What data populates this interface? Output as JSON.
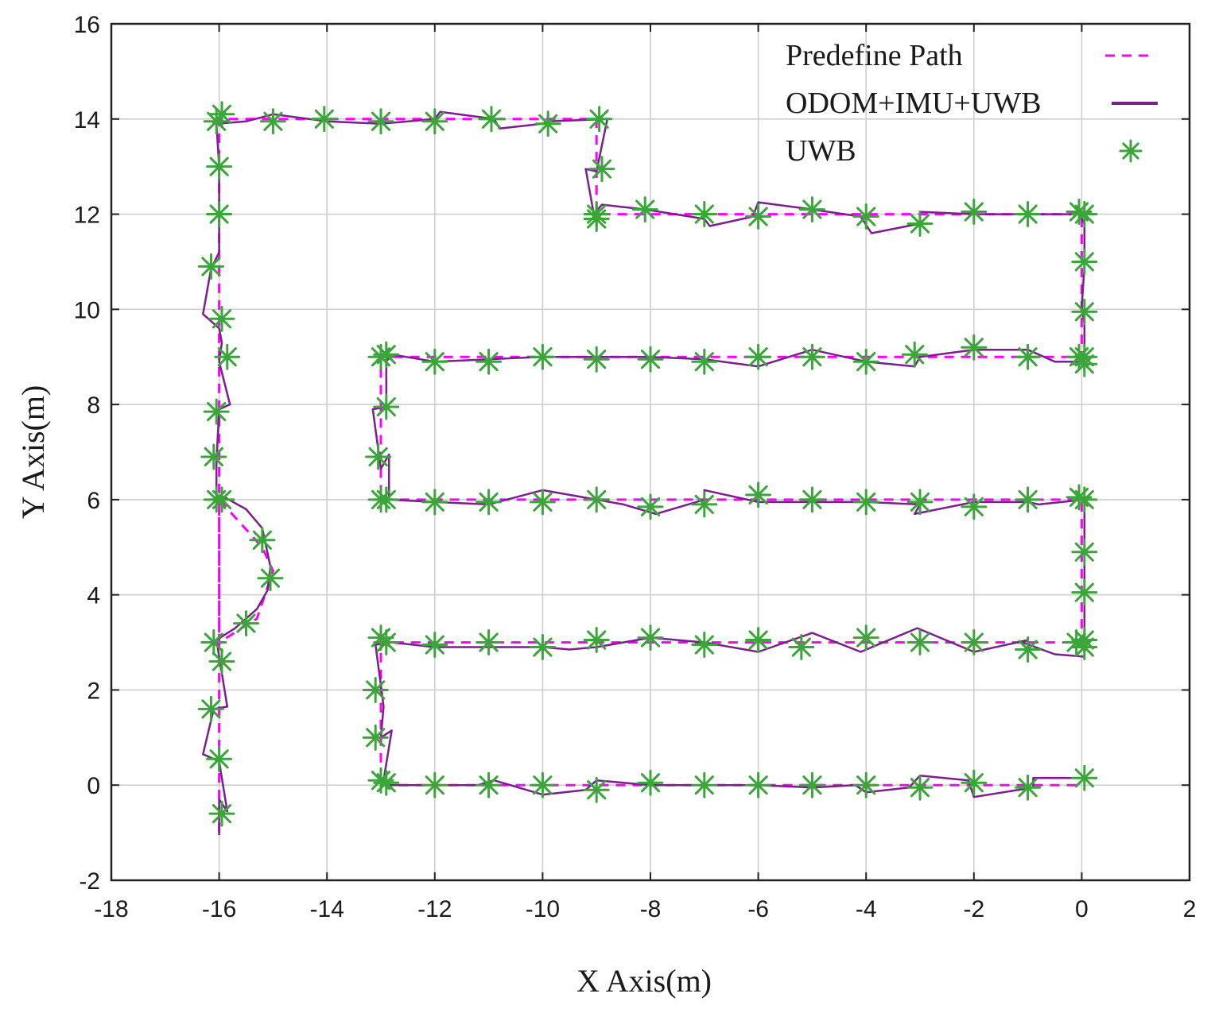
{
  "chart_data": {
    "type": "line",
    "xlabel": "X Axis(m)",
    "ylabel": "Y Axis(m)",
    "xlim": [
      -18,
      2
    ],
    "ylim": [
      -2,
      16
    ],
    "xticks": [
      -18,
      -16,
      -14,
      -12,
      -10,
      -8,
      -6,
      -4,
      -2,
      0,
      2
    ],
    "yticks": [
      -2,
      0,
      2,
      4,
      6,
      8,
      10,
      12,
      14,
      16
    ],
    "grid": true,
    "legend_position": "top-right",
    "series": [
      {
        "name": "Predefine Path",
        "style": "dashed",
        "color": "#ff00ff",
        "points": [
          [
            -16,
            -1
          ],
          [
            -16,
            6
          ],
          [
            -15.2,
            5
          ],
          [
            -15,
            4.5
          ],
          [
            -15.3,
            3.5
          ],
          [
            -16,
            3
          ],
          [
            -16,
            14
          ],
          [
            -9,
            14
          ],
          [
            -9,
            12
          ],
          [
            0,
            12
          ],
          [
            0,
            9
          ],
          [
            -13,
            9
          ],
          [
            -13,
            6
          ],
          [
            0,
            6
          ],
          [
            0,
            3
          ],
          [
            -13,
            3
          ],
          [
            -13,
            0
          ],
          [
            0,
            0
          ]
        ]
      },
      {
        "name": "ODOM+IMU+UWB",
        "style": "solid",
        "color": "#7b1f8c",
        "points": [
          [
            -16,
            -1.05
          ],
          [
            -16,
            -0.3
          ],
          [
            -15.85,
            -0.55
          ],
          [
            -16,
            0.5
          ],
          [
            -16.3,
            0.65
          ],
          [
            -16.1,
            1.6
          ],
          [
            -15.85,
            1.65
          ],
          [
            -16,
            2.7
          ],
          [
            -16.05,
            3.05
          ],
          [
            -15.7,
            3.3
          ],
          [
            -15.3,
            3.7
          ],
          [
            -15.1,
            4.1
          ],
          [
            -15.05,
            4.6
          ],
          [
            -15.2,
            5.4
          ],
          [
            -15.5,
            5.8
          ],
          [
            -15.9,
            6.05
          ],
          [
            -16.05,
            6.1
          ],
          [
            -16.05,
            6.8
          ],
          [
            -16,
            7.9
          ],
          [
            -15.8,
            8.0
          ],
          [
            -16.0,
            8.9
          ],
          [
            -15.95,
            9.3
          ],
          [
            -16.0,
            9.6
          ],
          [
            -16.3,
            9.9
          ],
          [
            -16.15,
            10.85
          ],
          [
            -16.0,
            11.2
          ],
          [
            -16.0,
            13.0
          ],
          [
            -16.05,
            13.9
          ],
          [
            -15.5,
            13.95
          ],
          [
            -15,
            14.1
          ],
          [
            -14,
            13.95
          ],
          [
            -13,
            13.9
          ],
          [
            -12,
            14.0
          ],
          [
            -11.9,
            14.15
          ],
          [
            -10.9,
            14.0
          ],
          [
            -10.8,
            13.8
          ],
          [
            -10,
            13.9
          ],
          [
            -9.9,
            13.95
          ],
          [
            -8.8,
            14.0
          ],
          [
            -9.0,
            12.9
          ],
          [
            -9.2,
            12.95
          ],
          [
            -9.05,
            12.0
          ],
          [
            -8.9,
            12.2
          ],
          [
            -8.1,
            12.1
          ],
          [
            -7,
            11.9
          ],
          [
            -6.9,
            11.75
          ],
          [
            -6.1,
            11.95
          ],
          [
            -6.0,
            12.25
          ],
          [
            -5,
            12.1
          ],
          [
            -4.1,
            11.95
          ],
          [
            -3.9,
            11.6
          ],
          [
            -3,
            11.8
          ],
          [
            -3,
            12.05
          ],
          [
            -2,
            12.0
          ],
          [
            -1.2,
            12.0
          ],
          [
            -0.05,
            12.0
          ],
          [
            0.05,
            11.8
          ],
          [
            0.05,
            10.9
          ],
          [
            0.0,
            10.05
          ],
          [
            0.05,
            9.7
          ],
          [
            0.05,
            8.9
          ],
          [
            -0.5,
            8.9
          ],
          [
            -1,
            9.15
          ],
          [
            -2,
            9.15
          ],
          [
            -3,
            9.0
          ],
          [
            -3.1,
            8.8
          ],
          [
            -4,
            8.9
          ],
          [
            -5,
            9.15
          ],
          [
            -6,
            8.8
          ],
          [
            -7,
            8.95
          ],
          [
            -8,
            9.0
          ],
          [
            -9,
            9.0
          ],
          [
            -10,
            9.0
          ],
          [
            -11,
            8.95
          ],
          [
            -12,
            8.9
          ],
          [
            -12.8,
            9.05
          ],
          [
            -12.9,
            8.9
          ],
          [
            -12.9,
            7.95
          ],
          [
            -13.15,
            7.9
          ],
          [
            -13.0,
            6.65
          ],
          [
            -12.85,
            6.95
          ],
          [
            -12.85,
            6.0
          ],
          [
            -12,
            5.95
          ],
          [
            -11,
            5.9
          ],
          [
            -10,
            6.2
          ],
          [
            -9,
            6.0
          ],
          [
            -8.5,
            5.9
          ],
          [
            -7.9,
            5.7
          ],
          [
            -7.0,
            6.0
          ],
          [
            -7.0,
            6.2
          ],
          [
            -6,
            5.95
          ],
          [
            -5,
            5.95
          ],
          [
            -4,
            5.95
          ],
          [
            -3,
            5.9
          ],
          [
            -3.1,
            5.7
          ],
          [
            -2,
            5.95
          ],
          [
            -1,
            5.95
          ],
          [
            -0.8,
            5.9
          ],
          [
            0.05,
            6.0
          ],
          [
            0.05,
            4.9
          ],
          [
            0.05,
            4.0
          ],
          [
            0.05,
            2.7
          ],
          [
            -0.5,
            2.75
          ],
          [
            -1.1,
            3.0
          ],
          [
            -1,
            3.05
          ],
          [
            -2,
            2.8
          ],
          [
            -3.05,
            3.3
          ],
          [
            -4.1,
            2.8
          ],
          [
            -5,
            3.2
          ],
          [
            -6,
            2.8
          ],
          [
            -7,
            3.0
          ],
          [
            -8,
            3.1
          ],
          [
            -9,
            2.9
          ],
          [
            -9.5,
            2.85
          ],
          [
            -10,
            2.9
          ],
          [
            -11,
            2.9
          ],
          [
            -12,
            2.9
          ],
          [
            -12.8,
            3.0
          ],
          [
            -13.1,
            2.95
          ],
          [
            -13.0,
            2.1
          ],
          [
            -12.95,
            1.65
          ],
          [
            -13,
            1.0
          ],
          [
            -12.8,
            1.15
          ],
          [
            -12.95,
            0.1
          ],
          [
            -12.9,
            0.0
          ],
          [
            -12,
            0.0
          ],
          [
            -11.2,
            0.0
          ],
          [
            -10.9,
            0.1
          ],
          [
            -10,
            -0.2
          ],
          [
            -9.2,
            -0.1
          ],
          [
            -9,
            0.1
          ],
          [
            -8,
            0.0
          ],
          [
            -7,
            0.0
          ],
          [
            -6,
            0.0
          ],
          [
            -5,
            -0.05
          ],
          [
            -4.2,
            0.0
          ],
          [
            -4,
            -0.15
          ],
          [
            -3.2,
            -0.05
          ],
          [
            -3,
            0.2
          ],
          [
            -2.1,
            0.1
          ],
          [
            -2.0,
            -0.25
          ],
          [
            -0.9,
            -0.05
          ],
          [
            -0.9,
            0.15
          ],
          [
            0.05,
            0.15
          ]
        ]
      },
      {
        "name": "UWB",
        "style": "markers",
        "marker": "asterisk",
        "color": "#3aa63a",
        "points": [
          [
            -15.95,
            -0.6
          ],
          [
            -16.0,
            0.55
          ],
          [
            -16.15,
            1.6
          ],
          [
            -15.95,
            2.6
          ],
          [
            -16.1,
            3.0
          ],
          [
            -15.5,
            3.4
          ],
          [
            -15.05,
            4.35
          ],
          [
            -15.2,
            5.15
          ],
          [
            -15.95,
            6.0
          ],
          [
            -16.05,
            6.0
          ],
          [
            -16.1,
            6.9
          ],
          [
            -16.05,
            7.85
          ],
          [
            -15.85,
            9.0
          ],
          [
            -15.95,
            9.8
          ],
          [
            -16.15,
            10.9
          ],
          [
            -16.0,
            12.0
          ],
          [
            -16.0,
            13.0
          ],
          [
            -16.05,
            13.95
          ],
          [
            -15.95,
            14.1
          ],
          [
            -15.0,
            13.95
          ],
          [
            -14.05,
            14.0
          ],
          [
            -13.0,
            13.95
          ],
          [
            -12.0,
            13.95
          ],
          [
            -10.95,
            14.0
          ],
          [
            -9.9,
            13.9
          ],
          [
            -8.95,
            14.0
          ],
          [
            -8.9,
            12.95
          ],
          [
            -9.0,
            11.9
          ],
          [
            -9.0,
            12.0
          ],
          [
            -8.1,
            12.1
          ],
          [
            -7.0,
            12.0
          ],
          [
            -6.0,
            11.95
          ],
          [
            -5.0,
            12.1
          ],
          [
            -4.0,
            11.95
          ],
          [
            -3.0,
            11.8
          ],
          [
            -2.0,
            12.05
          ],
          [
            -1.0,
            12.0
          ],
          [
            -0.05,
            12.05
          ],
          [
            0.05,
            12.0
          ],
          [
            0.05,
            11.0
          ],
          [
            0.05,
            9.95
          ],
          [
            0.05,
            9.0
          ],
          [
            0.05,
            8.85
          ],
          [
            -0.05,
            9.0
          ],
          [
            -1.0,
            9.0
          ],
          [
            -2.0,
            9.2
          ],
          [
            -3.1,
            9.05
          ],
          [
            -4.0,
            8.9
          ],
          [
            -5.0,
            9.0
          ],
          [
            -6.0,
            9.0
          ],
          [
            -7.0,
            8.9
          ],
          [
            -8.0,
            8.95
          ],
          [
            -9.0,
            8.95
          ],
          [
            -10.0,
            9.0
          ],
          [
            -11.0,
            8.9
          ],
          [
            -12.0,
            8.9
          ],
          [
            -13.0,
            9.0
          ],
          [
            -12.9,
            9.05
          ],
          [
            -12.9,
            7.95
          ],
          [
            -13.05,
            6.9
          ],
          [
            -13.0,
            6.0
          ],
          [
            -12.9,
            6.0
          ],
          [
            -12.0,
            5.95
          ],
          [
            -11.0,
            5.95
          ],
          [
            -10.0,
            5.95
          ],
          [
            -9.0,
            6.0
          ],
          [
            -8.0,
            5.85
          ],
          [
            -7.0,
            5.9
          ],
          [
            -6.0,
            6.1
          ],
          [
            -5.0,
            6.0
          ],
          [
            -4.0,
            5.95
          ],
          [
            -3.0,
            5.95
          ],
          [
            -2.0,
            5.85
          ],
          [
            -1.0,
            6.0
          ],
          [
            -0.05,
            6.05
          ],
          [
            0.05,
            6.0
          ],
          [
            0.05,
            4.9
          ],
          [
            0.05,
            4.05
          ],
          [
            0.05,
            3.05
          ],
          [
            -0.1,
            3.0
          ],
          [
            0.05,
            2.9
          ],
          [
            -1.0,
            2.85
          ],
          [
            -2.0,
            3.0
          ],
          [
            -3.0,
            3.0
          ],
          [
            -4.0,
            3.1
          ],
          [
            -5.2,
            2.9
          ],
          [
            -6.0,
            3.05
          ],
          [
            -7.0,
            2.95
          ],
          [
            -8.0,
            3.1
          ],
          [
            -9.0,
            3.05
          ],
          [
            -10.0,
            2.9
          ],
          [
            -11.0,
            3.0
          ],
          [
            -12.0,
            2.95
          ],
          [
            -12.9,
            3.0
          ],
          [
            -13.0,
            3.1
          ],
          [
            -13.1,
            2.0
          ],
          [
            -13.1,
            1.0
          ],
          [
            -13.0,
            0.1
          ],
          [
            -12.9,
            0.05
          ],
          [
            -12.0,
            0.0
          ],
          [
            -11.0,
            0.0
          ],
          [
            -10.0,
            0.0
          ],
          [
            -9.0,
            -0.1
          ],
          [
            -8.0,
            0.05
          ],
          [
            -7.0,
            0.0
          ],
          [
            -6.0,
            0.0
          ],
          [
            -5.0,
            0.0
          ],
          [
            -4.0,
            0.0
          ],
          [
            -3.0,
            -0.05
          ],
          [
            -2.0,
            0.05
          ],
          [
            -1.0,
            -0.05
          ],
          [
            0.05,
            0.15
          ]
        ]
      }
    ]
  }
}
